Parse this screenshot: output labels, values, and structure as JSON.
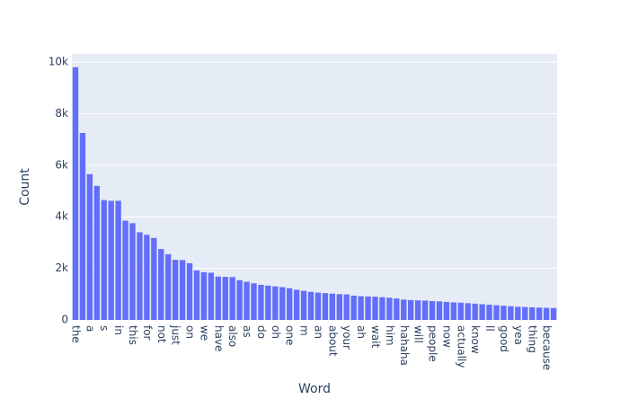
{
  "chart_data": {
    "type": "bar",
    "x_label": "Word",
    "y_label": "Count",
    "categories": [
      "the",
      null,
      "a",
      null,
      "s",
      null,
      "in",
      null,
      "this",
      null,
      "for",
      null,
      "not",
      null,
      "just",
      null,
      "on",
      null,
      "we",
      null,
      "have",
      null,
      "also",
      null,
      "as",
      null,
      "do",
      null,
      "oh",
      null,
      "one",
      null,
      "m",
      null,
      "an",
      null,
      "about",
      null,
      "your",
      null,
      "ah",
      null,
      "wait",
      null,
      "him",
      null,
      "hahaha",
      null,
      "will",
      null,
      "people",
      null,
      "now",
      null,
      "actually",
      null,
      "know",
      null,
      "ll",
      null,
      "good",
      null,
      "yea",
      null,
      "thing",
      null,
      "because",
      null
    ],
    "values": [
      9800,
      7250,
      5650,
      5200,
      4650,
      4620,
      4620,
      3850,
      3750,
      3400,
      3300,
      3180,
      2750,
      2550,
      2330,
      2320,
      2200,
      1920,
      1850,
      1830,
      1680,
      1670,
      1660,
      1540,
      1480,
      1420,
      1360,
      1330,
      1300,
      1270,
      1230,
      1170,
      1130,
      1090,
      1060,
      1040,
      1020,
      1000,
      990,
      940,
      920,
      910,
      900,
      880,
      860,
      830,
      790,
      770,
      760,
      750,
      730,
      720,
      700,
      680,
      670,
      650,
      630,
      610,
      590,
      570,
      550,
      530,
      510,
      500,
      490,
      480,
      470,
      460
    ],
    "color": "#636efa",
    "ylim": [
      0,
      10316
    ],
    "yticks": [
      0,
      {
        "value": 2000,
        "label": "2k"
      },
      {
        "value": 4000,
        "label": "4k"
      },
      {
        "value": 6000,
        "label": "6k"
      },
      {
        "value": 8000,
        "label": "8k"
      },
      {
        "value": 10000,
        "label": "10k"
      }
    ],
    "grid": true
  }
}
